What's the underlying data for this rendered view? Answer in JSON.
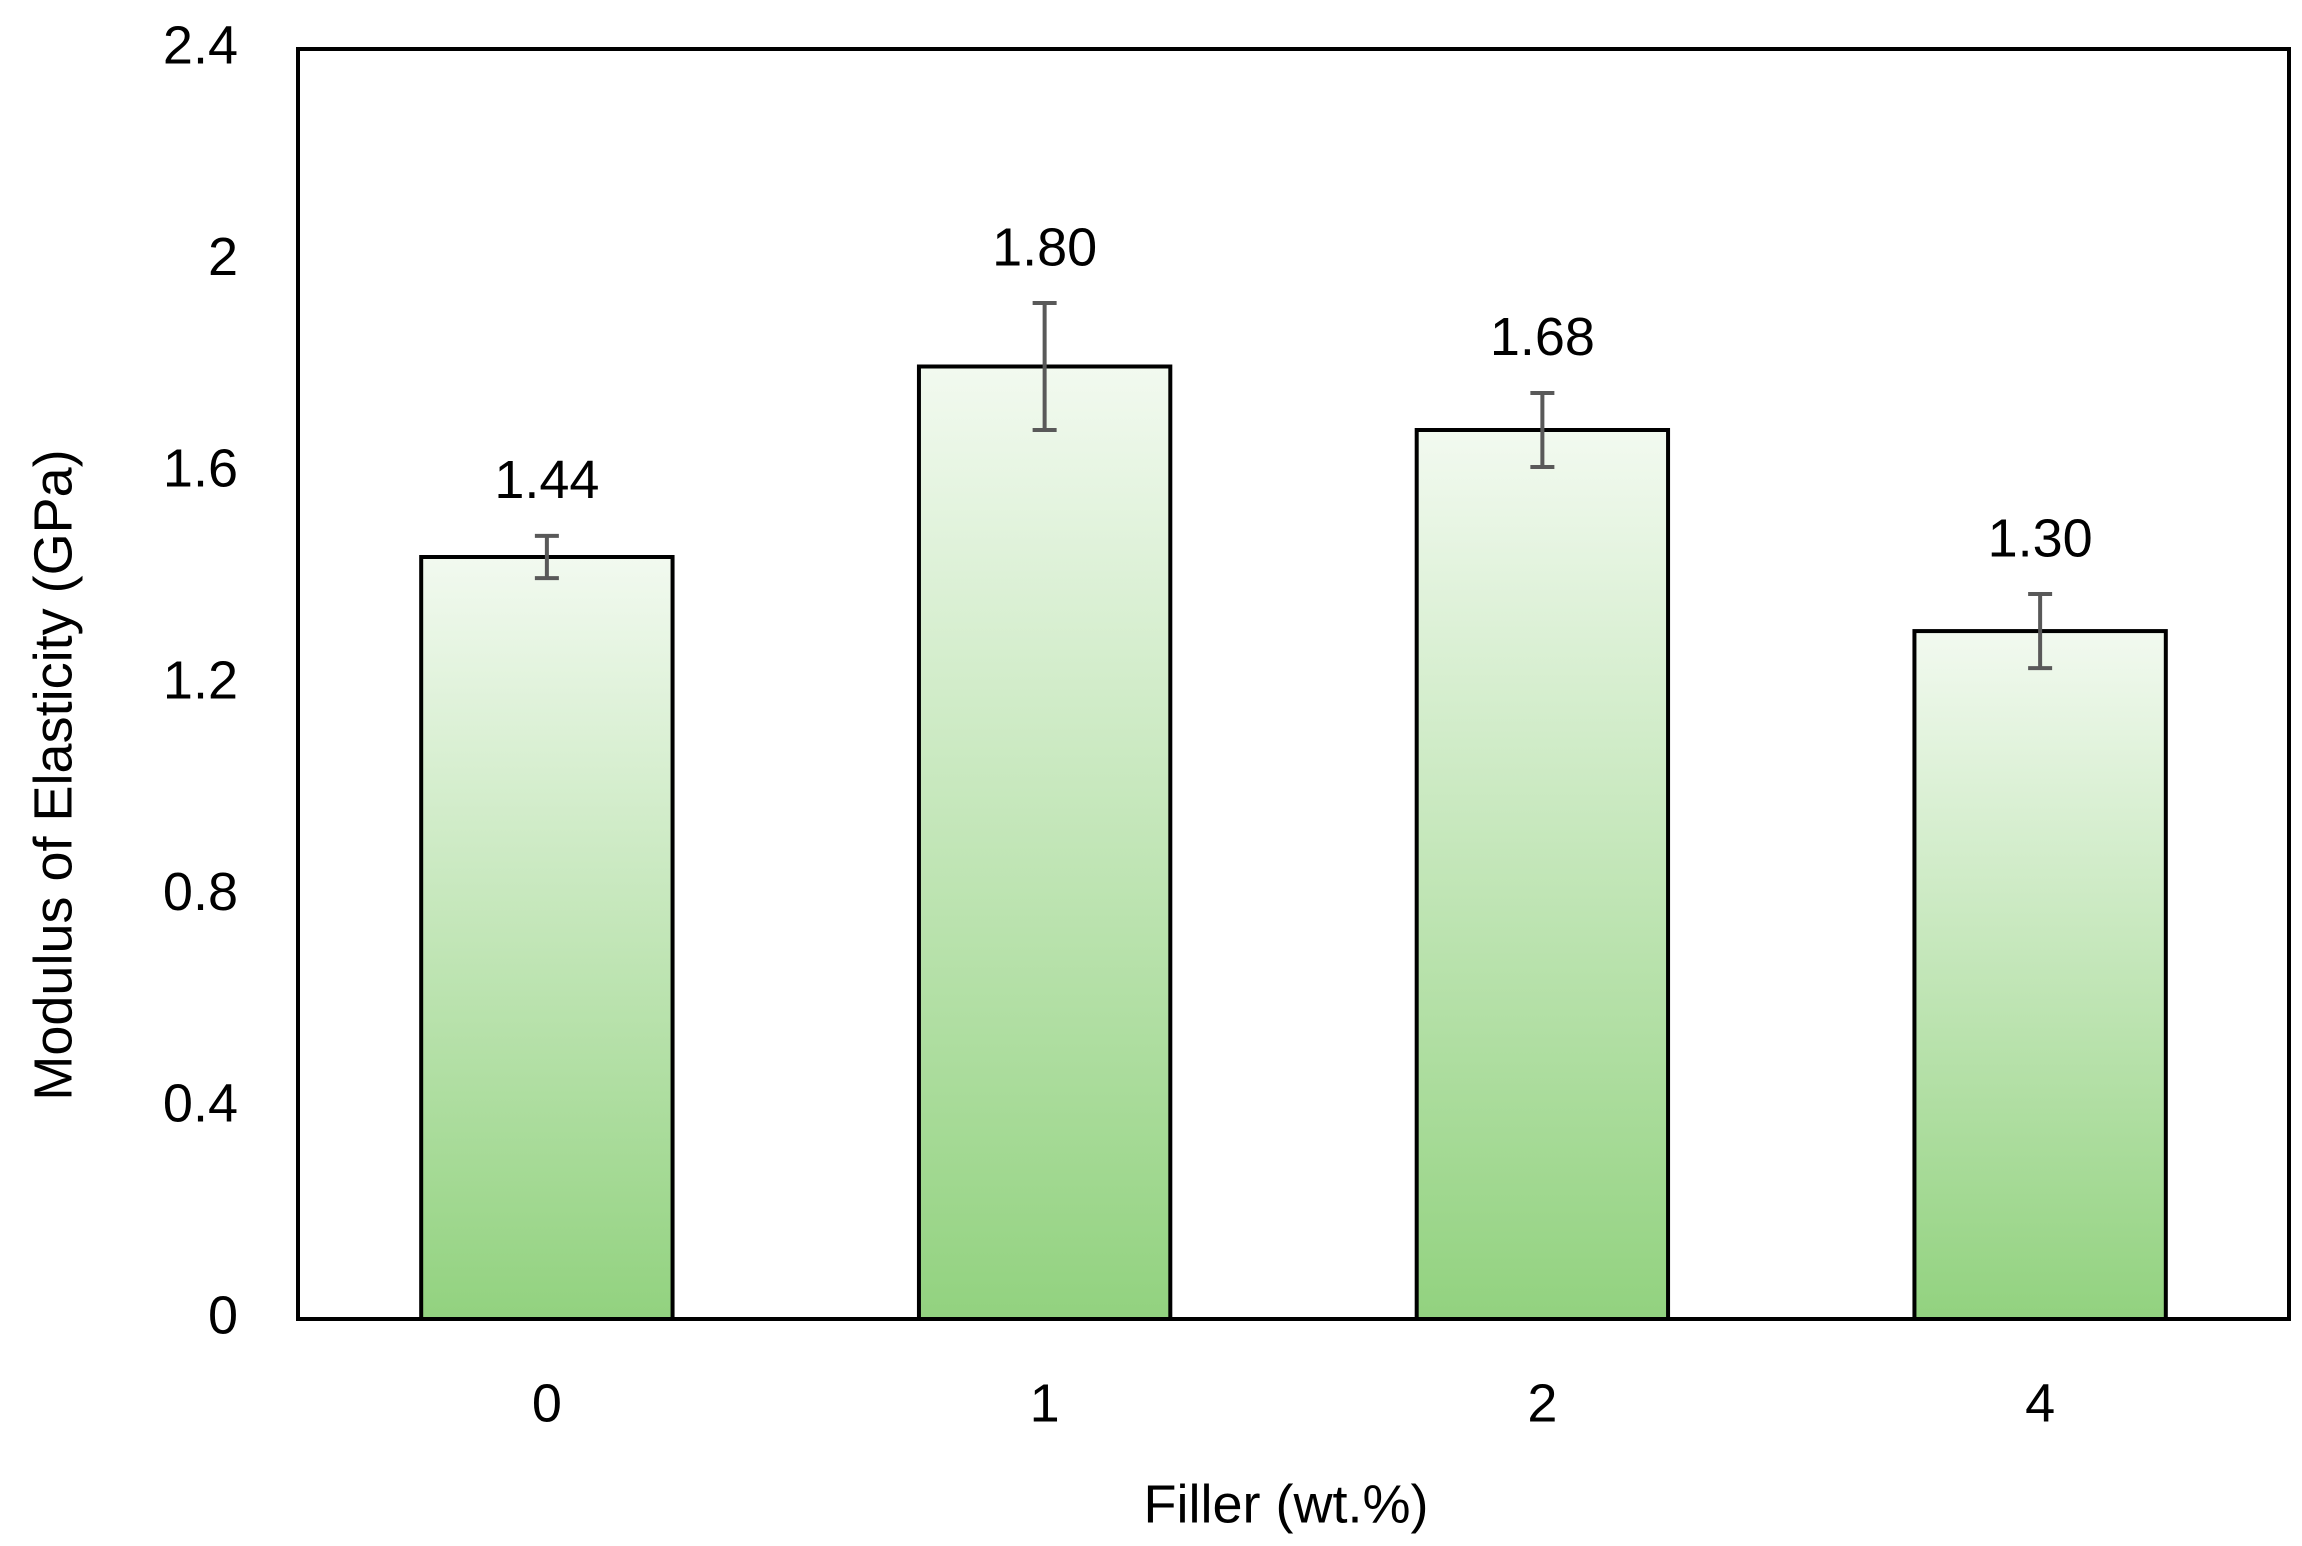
{
  "chart_data": {
    "type": "bar",
    "x_label": "Filler (wt.%)",
    "y_label": "Modulus of Elasticity (GPa)",
    "categories": [
      "0",
      "1",
      "2",
      "4"
    ],
    "values": [
      1.44,
      1.8,
      1.68,
      1.3
    ],
    "value_labels": [
      "1.44",
      "1.80",
      "1.68",
      "1.30"
    ],
    "errors": [
      0.04,
      0.12,
      0.07,
      0.07
    ],
    "color": "#92d27f",
    "ylim": [
      0,
      2.4
    ],
    "yticks": [
      0,
      0.4,
      0.8,
      1.2,
      1.6,
      2,
      2.4
    ],
    "grid": false
  }
}
